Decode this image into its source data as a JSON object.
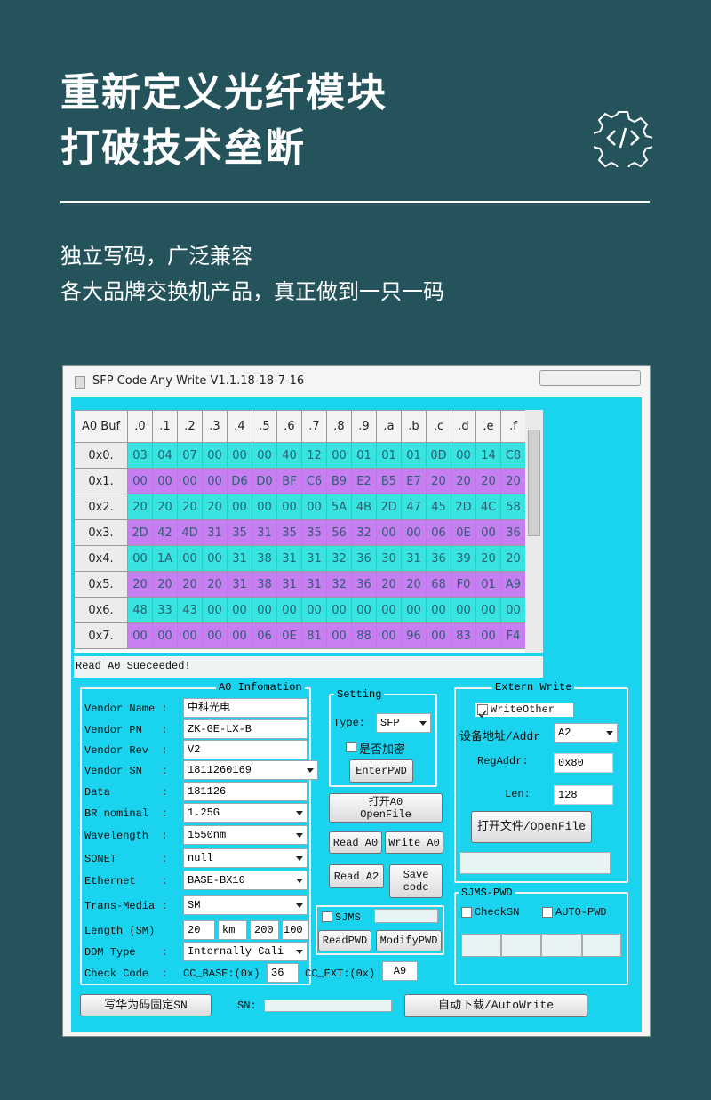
{
  "header": {
    "title_lines": [
      "重新定义光纤模块",
      "打破技术垒断"
    ],
    "subtitle_lines": [
      "独立写码，广泛兼容",
      "各大品牌交换机产品，真正做到一只一码"
    ]
  },
  "window": {
    "title": "SFP Code Any Write V1.1.18-18-7-16",
    "hex_table": {
      "corner": "A0 Buf",
      "columns": [
        ".0",
        ".1",
        ".2",
        ".3",
        ".4",
        ".5",
        ".6",
        ".7",
        ".8",
        ".9",
        ".a",
        ".b",
        ".c",
        ".d",
        ".e",
        ".f"
      ],
      "rows": [
        {
          "label": "0x0.",
          "cells": [
            "03",
            "04",
            "07",
            "00",
            "00",
            "00",
            "40",
            "12",
            "00",
            "01",
            "01",
            "01",
            "0D",
            "00",
            "14",
            "C8"
          ]
        },
        {
          "label": "0x1.",
          "cells": [
            "00",
            "00",
            "00",
            "00",
            "D6",
            "D0",
            "BF",
            "C6",
            "B9",
            "E2",
            "B5",
            "E7",
            "20",
            "20",
            "20",
            "20"
          ]
        },
        {
          "label": "0x2.",
          "cells": [
            "20",
            "20",
            "20",
            "20",
            "00",
            "00",
            "00",
            "00",
            "5A",
            "4B",
            "2D",
            "47",
            "45",
            "2D",
            "4C",
            "58"
          ]
        },
        {
          "label": "0x3.",
          "cells": [
            "2D",
            "42",
            "4D",
            "31",
            "35",
            "31",
            "35",
            "35",
            "56",
            "32",
            "00",
            "00",
            "06",
            "0E",
            "00",
            "36"
          ]
        },
        {
          "label": "0x4.",
          "cells": [
            "00",
            "1A",
            "00",
            "00",
            "31",
            "38",
            "31",
            "31",
            "32",
            "36",
            "30",
            "31",
            "36",
            "39",
            "20",
            "20"
          ]
        },
        {
          "label": "0x5.",
          "cells": [
            "20",
            "20",
            "20",
            "20",
            "31",
            "38",
            "31",
            "31",
            "32",
            "36",
            "20",
            "20",
            "68",
            "F0",
            "01",
            "A9"
          ]
        },
        {
          "label": "0x6.",
          "cells": [
            "48",
            "33",
            "43",
            "00",
            "00",
            "00",
            "00",
            "00",
            "00",
            "00",
            "00",
            "00",
            "00",
            "00",
            "00",
            "00"
          ]
        },
        {
          "label": "0x7.",
          "cells": [
            "00",
            "00",
            "00",
            "00",
            "00",
            "06",
            "0E",
            "81",
            "00",
            "88",
            "00",
            "96",
            "00",
            "83",
            "00",
            "F4"
          ]
        }
      ]
    },
    "status": "Read A0 Sueceeded!",
    "a0_info": {
      "title": "A0 Infomation",
      "fields": [
        {
          "label": "Vendor Name :",
          "value": "中科光电",
          "dropdown": false
        },
        {
          "label": "Vendor PN   :",
          "value": "ZK-GE-LX-B",
          "dropdown": false
        },
        {
          "label": "Vendor Rev  :",
          "value": "V2",
          "dropdown": false
        },
        {
          "label": "Vendor SN   :",
          "value": "1811260169",
          "dropdown": true
        },
        {
          "label": "Data        :",
          "value": "181126",
          "dropdown": false
        },
        {
          "label": "BR nominal  :",
          "value": "1.25G",
          "dropdown": true
        },
        {
          "label": "Wavelength  :",
          "value": "1550nm",
          "dropdown": true
        },
        {
          "label": "SONET       :",
          "value": "null",
          "dropdown": true
        },
        {
          "label": "Ethernet    :",
          "value": "BASE-BX10",
          "dropdown": true
        },
        {
          "label": "Trans-Media :",
          "value": "SM",
          "dropdown": true
        }
      ],
      "length": {
        "label": "Length (SM)",
        "values": [
          "20",
          "km",
          "200",
          "100"
        ]
      },
      "ddm": {
        "label": "DDM Type    :",
        "value": "Internally Cali"
      },
      "check": {
        "label": "Check Code  :",
        "base_label": "CC_BASE:(0x)",
        "base_value": "36",
        "ext_label": "CC_EXT:(0x)",
        "ext_value": "A9"
      }
    },
    "setting": {
      "title": "Setting",
      "type_label": "Type:",
      "type_value": "SFP",
      "encrypt": "是否加密",
      "enter_pwd": "EnterPWD"
    },
    "buttons": {
      "open_a0": [
        "打开A0",
        "OpenFile"
      ],
      "read_a0": "Read A0",
      "write_a0": "Write A0",
      "read_a2": "Read A2",
      "save_code": [
        "Save",
        "code"
      ]
    },
    "sjms": {
      "check": "SJMS",
      "read_pwd": "ReadPWD",
      "modify_pwd": "ModifyPWD"
    },
    "extern_write": {
      "title": "Extern Write",
      "write_other": "WriteOther",
      "addr_label": "设备地址/Addr",
      "addr_value": "A2",
      "reg_label": "RegAddr:",
      "reg_value": "0x80",
      "len_label": "Len:",
      "len_value": "128",
      "open_file": "打开文件/OpenFile"
    },
    "sjms_pwd": {
      "title": "SJMS-PWD",
      "check_sn": "CheckSN",
      "auto_pwd": "AUTO-PWD"
    },
    "bottom": {
      "huawei_sn": "写华为码固定SN",
      "sn_label": "SN:",
      "auto_write": "自动下载/AutoWrite"
    }
  }
}
